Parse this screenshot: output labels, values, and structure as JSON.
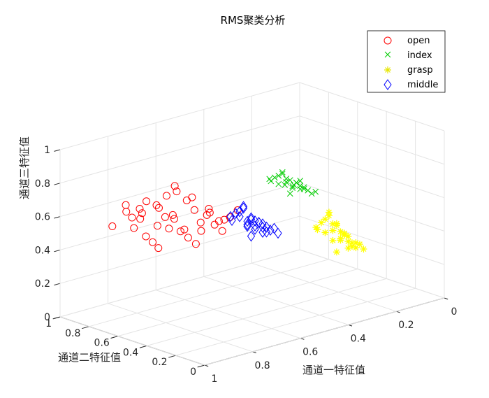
{
  "chart_data": {
    "type": "scatter",
    "projection": "3d",
    "title": "RMS聚类分析",
    "xlabel": "通道一特征值",
    "ylabel": "通道二特征值",
    "zlabel": "通道三特征值",
    "xlim": [
      0,
      1
    ],
    "ylim": [
      0,
      1
    ],
    "zlim": [
      0,
      1
    ],
    "xticks": [
      "0",
      "0.2",
      "0.4",
      "0.6",
      "0.8",
      "1"
    ],
    "yticks": [
      "0",
      "0.2",
      "0.4",
      "0.6",
      "0.8",
      "1"
    ],
    "zticks": [
      "0",
      "0.2",
      "0.4",
      "0.6",
      "0.8",
      "1"
    ],
    "grid": true,
    "legend_position": "top-right",
    "series": [
      {
        "name": "open",
        "marker": "circle",
        "color": "#ff0000",
        "x": [
          0.62,
          0.66,
          0.7,
          0.74,
          0.6,
          0.56,
          0.52,
          0.5,
          0.58,
          0.64,
          0.68,
          0.72,
          0.76,
          0.54,
          0.48,
          0.46,
          0.44,
          0.6,
          0.65,
          0.7,
          0.55,
          0.62,
          0.67,
          0.73,
          0.58,
          0.5,
          0.53,
          0.57,
          0.63,
          0.69,
          0.75,
          0.8,
          0.61,
          0.56,
          0.52,
          0.66,
          0.71,
          0.59,
          0.64,
          0.49
        ],
        "y": [
          0.85,
          0.88,
          0.9,
          0.92,
          0.83,
          0.8,
          0.78,
          0.76,
          0.82,
          0.86,
          0.89,
          0.91,
          0.94,
          0.79,
          0.74,
          0.72,
          0.7,
          0.87,
          0.9,
          0.93,
          0.77,
          0.84,
          0.88,
          0.95,
          0.81,
          0.73,
          0.75,
          0.8,
          0.86,
          0.92,
          0.96,
          0.97,
          0.84,
          0.79,
          0.76,
          0.89,
          0.93,
          0.82,
          0.87,
          0.71
        ],
        "z": [
          0.5,
          0.55,
          0.6,
          0.45,
          0.4,
          0.52,
          0.48,
          0.42,
          0.58,
          0.62,
          0.35,
          0.5,
          0.55,
          0.44,
          0.38,
          0.46,
          0.5,
          0.66,
          0.3,
          0.52,
          0.4,
          0.48,
          0.57,
          0.5,
          0.36,
          0.45,
          0.53,
          0.6,
          0.42,
          0.38,
          0.58,
          0.47,
          0.64,
          0.32,
          0.5,
          0.44,
          0.55,
          0.41,
          0.49,
          0.46
        ]
      },
      {
        "name": "index",
        "marker": "x",
        "color": "#00cc00",
        "x": [
          0.42,
          0.4,
          0.38,
          0.36,
          0.44,
          0.41,
          0.39,
          0.37,
          0.35,
          0.43,
          0.4,
          0.38,
          0.34,
          0.42,
          0.39,
          0.36,
          0.33,
          0.41,
          0.37,
          0.35,
          0.44,
          0.4,
          0.38,
          0.36,
          0.32
        ],
        "y": [
          0.45,
          0.43,
          0.42,
          0.4,
          0.47,
          0.44,
          0.42,
          0.41,
          0.39,
          0.46,
          0.43,
          0.41,
          0.38,
          0.45,
          0.42,
          0.4,
          0.37,
          0.44,
          0.41,
          0.39,
          0.48,
          0.44,
          0.42,
          0.4,
          0.36
        ],
        "z": [
          0.72,
          0.75,
          0.7,
          0.68,
          0.74,
          0.78,
          0.66,
          0.72,
          0.69,
          0.76,
          0.73,
          0.71,
          0.67,
          0.77,
          0.74,
          0.7,
          0.65,
          0.79,
          0.72,
          0.68,
          0.75,
          0.71,
          0.69,
          0.73,
          0.66
        ]
      },
      {
        "name": "grasp",
        "marker": "star",
        "color": "#ffff00",
        "x": [
          0.28,
          0.26,
          0.24,
          0.22,
          0.3,
          0.27,
          0.25,
          0.23,
          0.21,
          0.29,
          0.26,
          0.24,
          0.2,
          0.28,
          0.25,
          0.22,
          0.19,
          0.27,
          0.23,
          0.21,
          0.3,
          0.26,
          0.24,
          0.22,
          0.18,
          0.25,
          0.23,
          0.2
        ],
        "y": [
          0.36,
          0.34,
          0.32,
          0.3,
          0.38,
          0.35,
          0.33,
          0.31,
          0.29,
          0.37,
          0.34,
          0.32,
          0.28,
          0.36,
          0.33,
          0.3,
          0.27,
          0.35,
          0.31,
          0.29,
          0.39,
          0.34,
          0.32,
          0.3,
          0.26,
          0.33,
          0.31,
          0.28
        ],
        "z": [
          0.4,
          0.45,
          0.35,
          0.3,
          0.42,
          0.5,
          0.28,
          0.38,
          0.33,
          0.46,
          0.41,
          0.36,
          0.3,
          0.48,
          0.44,
          0.37,
          0.32,
          0.52,
          0.39,
          0.31,
          0.43,
          0.35,
          0.4,
          0.34,
          0.29,
          0.45,
          0.38,
          0.33
        ]
      },
      {
        "name": "middle",
        "marker": "diamond",
        "color": "#0000ff",
        "x": [
          0.48,
          0.46,
          0.44,
          0.42,
          0.5,
          0.47,
          0.45,
          0.43,
          0.41,
          0.49,
          0.46,
          0.44,
          0.4,
          0.48,
          0.45,
          0.42,
          0.39,
          0.47,
          0.43,
          0.41,
          0.5,
          0.46,
          0.44,
          0.42,
          0.38,
          0.45
        ],
        "y": [
          0.62,
          0.6,
          0.58,
          0.56,
          0.64,
          0.61,
          0.59,
          0.57,
          0.55,
          0.63,
          0.6,
          0.58,
          0.54,
          0.62,
          0.59,
          0.56,
          0.53,
          0.61,
          0.57,
          0.55,
          0.65,
          0.6,
          0.58,
          0.56,
          0.52,
          0.59
        ],
        "z": [
          0.5,
          0.45,
          0.42,
          0.4,
          0.48,
          0.55,
          0.38,
          0.46,
          0.43,
          0.52,
          0.47,
          0.44,
          0.41,
          0.53,
          0.49,
          0.45,
          0.42,
          0.56,
          0.46,
          0.4,
          0.5,
          0.44,
          0.47,
          0.43,
          0.39,
          0.48
        ]
      }
    ]
  }
}
